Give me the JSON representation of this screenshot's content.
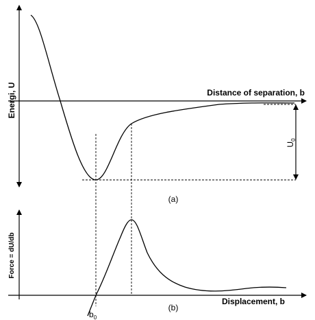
{
  "diagram_a": {
    "y_axis_label": "Energi, U",
    "x_axis_label": "Distance of separation, b",
    "depth_label": {
      "base": "U",
      "sub": "0"
    },
    "caption": "(a)"
  },
  "diagram_b": {
    "y_axis_label": "Force = dU/db",
    "x_axis_label": "Displacement, b",
    "root_label": {
      "base": "b",
      "sub": "0"
    },
    "caption": "(b)"
  }
}
